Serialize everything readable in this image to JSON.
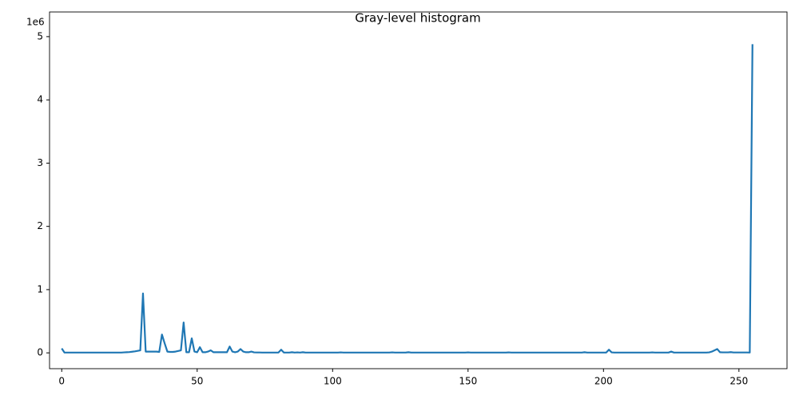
{
  "chart_data": {
    "type": "line",
    "title": "Gray-level histogram",
    "y_offset_label": "1e6",
    "x": [
      0,
      1,
      2,
      3,
      4,
      5,
      6,
      7,
      8,
      9,
      10,
      11,
      12,
      13,
      14,
      15,
      16,
      17,
      18,
      19,
      20,
      21,
      22,
      23,
      24,
      25,
      26,
      27,
      28,
      29,
      30,
      31,
      32,
      33,
      34,
      35,
      36,
      37,
      38,
      39,
      40,
      41,
      42,
      43,
      44,
      45,
      46,
      47,
      48,
      49,
      50,
      51,
      52,
      53,
      54,
      55,
      56,
      57,
      58,
      59,
      60,
      61,
      62,
      63,
      64,
      65,
      66,
      67,
      68,
      69,
      70,
      71,
      72,
      73,
      74,
      75,
      76,
      77,
      78,
      79,
      80,
      81,
      82,
      83,
      84,
      85,
      86,
      87,
      88,
      89,
      90,
      91,
      92,
      93,
      94,
      95,
      96,
      97,
      98,
      99,
      100,
      101,
      102,
      103,
      104,
      105,
      106,
      107,
      108,
      109,
      110,
      111,
      112,
      113,
      114,
      115,
      116,
      117,
      118,
      119,
      120,
      121,
      122,
      123,
      124,
      125,
      126,
      127,
      128,
      129,
      130,
      131,
      132,
      133,
      134,
      135,
      136,
      137,
      138,
      139,
      140,
      141,
      142,
      143,
      144,
      145,
      146,
      147,
      148,
      149,
      150,
      151,
      152,
      153,
      154,
      155,
      156,
      157,
      158,
      159,
      160,
      161,
      162,
      163,
      164,
      165,
      166,
      167,
      168,
      169,
      170,
      171,
      172,
      173,
      174,
      175,
      176,
      177,
      178,
      179,
      180,
      181,
      182,
      183,
      184,
      185,
      186,
      187,
      188,
      189,
      190,
      191,
      192,
      193,
      194,
      195,
      196,
      197,
      198,
      199,
      200,
      201,
      202,
      203,
      204,
      205,
      206,
      207,
      208,
      209,
      210,
      211,
      212,
      213,
      214,
      215,
      216,
      217,
      218,
      219,
      220,
      221,
      222,
      223,
      224,
      225,
      226,
      227,
      228,
      229,
      230,
      231,
      232,
      233,
      234,
      235,
      236,
      237,
      238,
      239,
      240,
      241,
      242,
      243,
      244,
      245,
      246,
      247,
      248,
      249,
      250,
      251,
      252,
      253,
      254,
      255
    ],
    "series": [
      {
        "color": "#1f77b4",
        "values": [
          0.07,
          0.005,
          0.005,
          0.005,
          0.005,
          0.005,
          0.005,
          0.005,
          0.005,
          0.005,
          0.005,
          0.005,
          0.005,
          0.005,
          0.005,
          0.005,
          0.005,
          0.005,
          0.005,
          0.005,
          0.005,
          0.005,
          0.005,
          0.008,
          0.01,
          0.013,
          0.018,
          0.024,
          0.032,
          0.04,
          0.94,
          0.02,
          0.02,
          0.02,
          0.02,
          0.02,
          0.015,
          0.29,
          0.15,
          0.02,
          0.015,
          0.015,
          0.02,
          0.03,
          0.04,
          0.48,
          0.01,
          0.01,
          0.23,
          0.02,
          0.01,
          0.09,
          0.01,
          0.01,
          0.02,
          0.04,
          0.01,
          0.01,
          0.01,
          0.01,
          0.01,
          0.01,
          0.1,
          0.02,
          0.01,
          0.02,
          0.06,
          0.02,
          0.01,
          0.01,
          0.02,
          0.008,
          0.006,
          0.006,
          0.005,
          0.005,
          0.005,
          0.005,
          0.005,
          0.005,
          0.005,
          0.05,
          0.005,
          0.005,
          0.005,
          0.01,
          0.005,
          0.008,
          0.005,
          0.01,
          0.005,
          0.005,
          0.005,
          0.005,
          0.005,
          0.005,
          0.005,
          0.005,
          0.005,
          0.005,
          0.005,
          0.005,
          0.005,
          0.008,
          0.005,
          0.005,
          0.005,
          0.005,
          0.005,
          0.005,
          0.005,
          0.005,
          0.005,
          0.005,
          0.005,
          0.005,
          0.005,
          0.005,
          0.005,
          0.005,
          0.005,
          0.005,
          0.008,
          0.005,
          0.005,
          0.005,
          0.005,
          0.005,
          0.01,
          0.005,
          0.005,
          0.005,
          0.005,
          0.005,
          0.005,
          0.005,
          0.005,
          0.005,
          0.005,
          0.005,
          0.005,
          0.005,
          0.005,
          0.005,
          0.005,
          0.005,
          0.005,
          0.005,
          0.005,
          0.005,
          0.008,
          0.005,
          0.005,
          0.005,
          0.005,
          0.005,
          0.005,
          0.005,
          0.005,
          0.005,
          0.005,
          0.005,
          0.005,
          0.005,
          0.005,
          0.008,
          0.005,
          0.005,
          0.005,
          0.005,
          0.005,
          0.005,
          0.005,
          0.005,
          0.005,
          0.005,
          0.005,
          0.005,
          0.005,
          0.005,
          0.005,
          0.005,
          0.005,
          0.005,
          0.005,
          0.005,
          0.005,
          0.005,
          0.005,
          0.005,
          0.005,
          0.005,
          0.005,
          0.01,
          0.005,
          0.005,
          0.005,
          0.005,
          0.005,
          0.005,
          0.005,
          0.005,
          0.05,
          0.008,
          0.005,
          0.005,
          0.005,
          0.005,
          0.005,
          0.005,
          0.005,
          0.005,
          0.005,
          0.005,
          0.005,
          0.005,
          0.005,
          0.005,
          0.008,
          0.005,
          0.005,
          0.005,
          0.005,
          0.005,
          0.005,
          0.02,
          0.005,
          0.005,
          0.005,
          0.005,
          0.005,
          0.005,
          0.005,
          0.005,
          0.005,
          0.005,
          0.005,
          0.005,
          0.005,
          0.008,
          0.02,
          0.04,
          0.06,
          0.01,
          0.008,
          0.008,
          0.008,
          0.012,
          0.006,
          0.006,
          0.006,
          0.006,
          0.006,
          0.006,
          0.005,
          4.88
        ]
      }
    ],
    "xlim": [
      -4.5,
      267.75
    ],
    "xticks": [
      0,
      50,
      100,
      150,
      200,
      250
    ],
    "ylim": [
      -0.25,
      5.39
    ],
    "yticks": [
      0,
      1,
      2,
      3,
      4,
      5
    ],
    "grid": false
  }
}
